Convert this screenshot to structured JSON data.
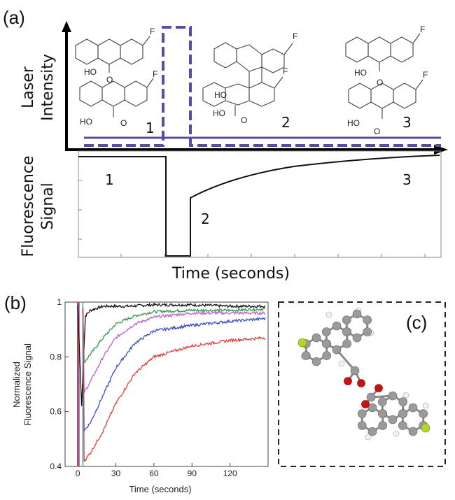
{
  "panel_a": {
    "label": "(a)",
    "top_axis_label_1": "Laser",
    "top_axis_label_2": "Intensity",
    "bottom_axis_label_1": "Fluorescence",
    "bottom_axis_label_2": "Signal",
    "x_axis_label": "Time (seconds)",
    "stage_numbers_top": [
      "1",
      "2",
      "3"
    ],
    "stage_numbers_bottom": [
      "1",
      "2",
      "3"
    ],
    "molecule_text": {
      "fluorine": "F",
      "hydroxyl": "HO",
      "oxygen": "O"
    },
    "colors": {
      "laser_line": "#5b4ba8",
      "laser_pulse": "#5b4ba8",
      "signal": "#111111"
    }
  },
  "panel_b": {
    "label": "(b)",
    "colors": {
      "black": "#111111",
      "green": "#2e9a4a",
      "magenta": "#c060d0",
      "blue": "#3a4fc8",
      "red": "#e0403a",
      "pulse_red": "#c0392b",
      "pulse_purple": "#7b4fc0",
      "pulse_cyan": "#2aa9c9"
    }
  },
  "panel_c": {
    "label": "(c)",
    "colors": {
      "carbon": "#9a9a9a",
      "hydrogen": "#f2f2f2",
      "oxygen": "#d01010",
      "fluorine": "#b0d820"
    }
  },
  "chart_data": [
    {
      "type": "line",
      "title": "",
      "xlabel": "Time (seconds)",
      "ylabel": "Fluorescence Signal",
      "note": "schematic",
      "series": [
        {
          "name": "Laser Intensity",
          "x": [
            0,
            0.28,
            0.28,
            0.33,
            0.33,
            1.0
          ],
          "values": [
            0,
            0,
            1,
            1,
            0,
            0
          ]
        },
        {
          "name": "Fluorescence Signal",
          "x": [
            0,
            0.28,
            0.28,
            0.33,
            0.33,
            1.0
          ],
          "values": [
            1,
            1,
            0,
            0,
            0.55,
            1.0
          ]
        }
      ]
    },
    {
      "type": "line",
      "title": "",
      "xlabel": "Time (seconds)",
      "ylabel": "Normalized Fluorescence Signal",
      "xlim": [
        -10,
        150
      ],
      "ylim": [
        0.4,
        1.0
      ],
      "xticks": [
        0,
        30,
        60,
        90,
        120
      ],
      "yticks": [
        0.4,
        0.6,
        0.8,
        1
      ],
      "grid": false,
      "series": [
        {
          "color": "black",
          "x": [
            0,
            3,
            6,
            10,
            20,
            40,
            60,
            90,
            120,
            148
          ],
          "values": [
            0.99,
            0.62,
            0.95,
            0.97,
            0.985,
            0.985,
            0.99,
            0.99,
            0.985,
            0.985
          ]
        },
        {
          "color": "green",
          "x": [
            4,
            5,
            10,
            20,
            30,
            45,
            60,
            90,
            120,
            148
          ],
          "values": [
            0.98,
            0.78,
            0.81,
            0.87,
            0.92,
            0.95,
            0.965,
            0.97,
            0.97,
            0.975
          ]
        },
        {
          "color": "magenta",
          "x": [
            4,
            5,
            10,
            20,
            30,
            45,
            60,
            90,
            120,
            148
          ],
          "values": [
            0.98,
            0.67,
            0.71,
            0.8,
            0.87,
            0.92,
            0.945,
            0.96,
            0.96,
            0.96
          ]
        },
        {
          "color": "blue",
          "x": [
            4,
            5,
            10,
            20,
            30,
            45,
            60,
            90,
            120,
            148
          ],
          "values": [
            0.98,
            0.53,
            0.56,
            0.66,
            0.76,
            0.85,
            0.895,
            0.915,
            0.93,
            0.94
          ]
        },
        {
          "color": "red",
          "x": [
            4,
            5,
            10,
            20,
            30,
            45,
            60,
            90,
            120,
            148
          ],
          "values": [
            0.98,
            0.42,
            0.45,
            0.53,
            0.63,
            0.74,
            0.8,
            0.84,
            0.86,
            0.87
          ]
        }
      ]
    }
  ]
}
